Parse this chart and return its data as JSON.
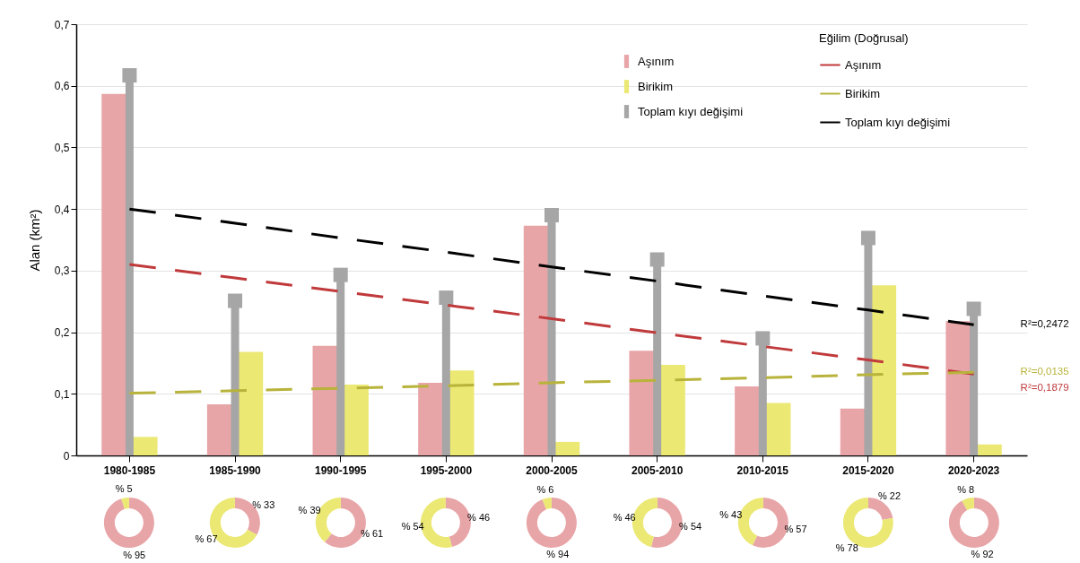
{
  "chart_data": [
    {
      "type": "bar",
      "ylabel": "Alan (km²)",
      "legend_title": "Eğilim (Doğrusal)",
      "legend": "top right",
      "grid": "y",
      "line_style": "dashed",
      "categories": [
        "1980-1985",
        "1985-1990",
        "1990-1995",
        "1995-2000",
        "2000-2005",
        "2005-2010",
        "2010-2015",
        "2015-2020",
        "2020-2023"
      ],
      "ylim": [
        0,
        0.7
      ],
      "yticks": [
        0,
        {
          "value": 0.1,
          "label": "0,1"
        },
        {
          "value": 0.2,
          "label": "0,2"
        },
        {
          "value": 0.3,
          "label": "0,3"
        },
        {
          "value": 0.4,
          "label": "0,4"
        },
        {
          "value": 0.5,
          "label": "0,5"
        },
        {
          "value": 0.6,
          "label": "0,6"
        },
        {
          "value": 0.7,
          "label": "0,7"
        }
      ],
      "series": [
        {
          "name": "Aşınım",
          "type": "bar",
          "color": "#e8a5a8",
          "values": [
            0.587,
            0.083,
            0.178,
            0.118,
            0.373,
            0.17,
            0.112,
            0.076,
            0.218
          ]
        },
        {
          "name": "Birikim",
          "type": "bar",
          "color": "#ebe873",
          "values": [
            0.03,
            0.168,
            0.115,
            0.138,
            0.022,
            0.147,
            0.085,
            0.276,
            0.018
          ]
        },
        {
          "name": "Toplam kıyı değişimi",
          "type": "lollipop",
          "color": "#a6a6a6",
          "values": [
            0.617,
            0.251,
            0.293,
            0.256,
            0.39,
            0.318,
            0.19,
            0.353,
            0.238
          ]
        },
        {
          "name": "Aşınım",
          "type": "line",
          "color": "#c0393b",
          "values": [
            0.31,
            0.288,
            0.266,
            0.244,
            0.222,
            0.199,
            0.177,
            0.155,
            0.132
          ]
        },
        {
          "name": "Birikim",
          "type": "line",
          "color": "#b8b33a",
          "values": [
            0.101,
            0.105,
            0.109,
            0.113,
            0.118,
            0.122,
            0.126,
            0.131,
            0.135
          ]
        },
        {
          "name": "Toplam kıyı değişimi",
          "type": "line",
          "color": "#000000",
          "values": [
            0.4,
            0.377,
            0.353,
            0.33,
            0.306,
            0.283,
            0.259,
            0.236,
            0.212
          ]
        }
      ],
      "annotations": [
        "R²=0,2472",
        "R²=0,0135",
        "R²=0,1879"
      ]
    },
    {
      "type": "donut",
      "categories": [
        null,
        null
      ],
      "values": [
        95,
        5
      ],
      "colors": [
        "#e8a5a8",
        "#ebe873"
      ],
      "value_labels": [
        "% 95",
        "% 5"
      ]
    },
    {
      "type": "donut",
      "categories": [
        null,
        null
      ],
      "values": [
        33,
        67
      ],
      "colors": [
        "#e8a5a8",
        "#ebe873"
      ],
      "value_labels": [
        "% 33",
        "% 67"
      ]
    },
    {
      "type": "donut",
      "categories": [
        null,
        null
      ],
      "values": [
        61,
        39
      ],
      "colors": [
        "#e8a5a8",
        "#ebe873"
      ],
      "value_labels": [
        "% 61",
        "% 39"
      ]
    },
    {
      "type": "donut",
      "categories": [
        null,
        null
      ],
      "values": [
        46,
        54
      ],
      "colors": [
        "#e8a5a8",
        "#ebe873"
      ],
      "value_labels": [
        "% 46",
        "% 54"
      ]
    },
    {
      "type": "donut",
      "categories": [
        null,
        null
      ],
      "values": [
        94,
        6
      ],
      "colors": [
        "#e8a5a8",
        "#ebe873"
      ],
      "value_labels": [
        "% 94",
        "% 6"
      ]
    },
    {
      "type": "donut",
      "categories": [
        null,
        null
      ],
      "values": [
        54,
        46
      ],
      "colors": [
        "#e8a5a8",
        "#ebe873"
      ],
      "value_labels": [
        "% 54",
        "% 46"
      ]
    },
    {
      "type": "donut",
      "categories": [
        null,
        null
      ],
      "values": [
        57,
        43
      ],
      "colors": [
        "#e8a5a8",
        "#ebe873"
      ],
      "value_labels": [
        "% 57",
        "% 43"
      ]
    },
    {
      "type": "donut",
      "categories": [
        null,
        null
      ],
      "values": [
        22,
        78
      ],
      "colors": [
        "#e8a5a8",
        "#ebe873"
      ],
      "value_labels": [
        "% 22",
        "% 78"
      ]
    },
    {
      "type": "donut",
      "categories": [
        null,
        null
      ],
      "values": [
        92,
        8
      ],
      "colors": [
        "#e8a5a8",
        "#ebe873"
      ],
      "value_labels": [
        "% 92",
        "% 8"
      ]
    }
  ]
}
